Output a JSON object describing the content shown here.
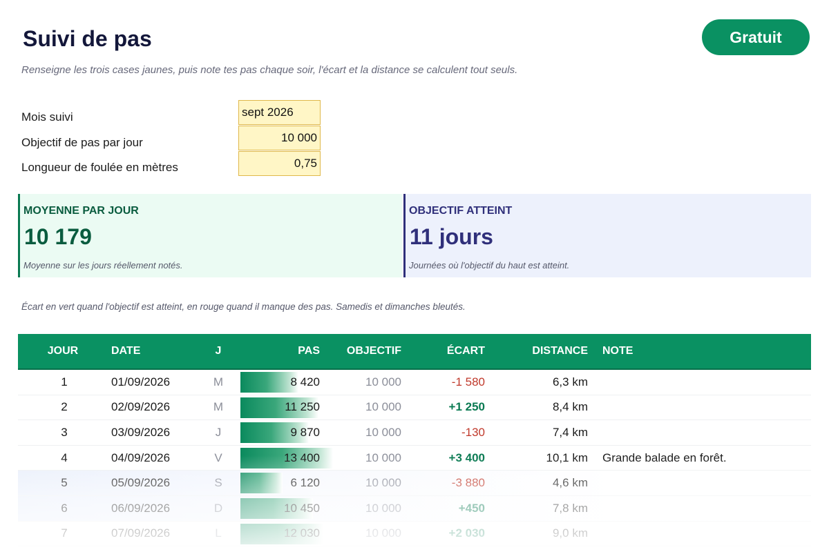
{
  "header": {
    "title": "Suivi de pas",
    "badge": "Gratuit",
    "subtitle": "Renseigne les trois cases jaunes, puis note tes pas chaque soir, l'écart et la distance se calculent tout seuls."
  },
  "params": [
    {
      "label": "Mois suivi",
      "value": "sept 2026"
    },
    {
      "label": "Objectif de pas par jour",
      "value": "10 000"
    },
    {
      "label": "Longueur de foulée en mètres",
      "value": "0,75"
    }
  ],
  "kpis": {
    "average": {
      "title": "MOYENNE PAR JOUR",
      "value": "10 179",
      "note": "Moyenne sur les jours réellement notés."
    },
    "goal": {
      "title": "OBJECTIF ATTEINT",
      "value": "11 jours",
      "note": "Journées où l'objectif du haut est atteint."
    }
  },
  "legend_note": "Écart en vert quand l'objectif est atteint, en rouge quand il manque des pas. Samedis et dimanches bleutés.",
  "table": {
    "headers": {
      "jour": "JOUR",
      "date": "DATE",
      "j": "J",
      "pas": "PAS",
      "objectif": "OBJECTIF",
      "ecart": "ÉCART",
      "distance": "DISTANCE",
      "note": "NOTE"
    },
    "bar_max_steps": 20000,
    "rows": [
      {
        "jour": "1",
        "date": "01/09/2026",
        "j": "M",
        "pas": "8 420",
        "steps": 8420,
        "objectif": "10 000",
        "ecart": "-1 580",
        "positive": false,
        "distance": "6,3 km",
        "note": "",
        "weekend": false
      },
      {
        "jour": "2",
        "date": "02/09/2026",
        "j": "M",
        "pas": "11 250",
        "steps": 11250,
        "objectif": "10 000",
        "ecart": "+1 250",
        "positive": true,
        "distance": "8,4 km",
        "note": "",
        "weekend": false
      },
      {
        "jour": "3",
        "date": "03/09/2026",
        "j": "J",
        "pas": "9 870",
        "steps": 9870,
        "objectif": "10 000",
        "ecart": "-130",
        "positive": false,
        "distance": "7,4 km",
        "note": "",
        "weekend": false
      },
      {
        "jour": "4",
        "date": "04/09/2026",
        "j": "V",
        "pas": "13 400",
        "steps": 13400,
        "objectif": "10 000",
        "ecart": "+3 400",
        "positive": true,
        "distance": "10,1 km",
        "note": "Grande balade en forêt.",
        "weekend": false
      },
      {
        "jour": "5",
        "date": "05/09/2026",
        "j": "S",
        "pas": "6 120",
        "steps": 6120,
        "objectif": "10 000",
        "ecart": "-3 880",
        "positive": false,
        "distance": "4,6 km",
        "note": "",
        "weekend": true
      },
      {
        "jour": "6",
        "date": "06/09/2026",
        "j": "D",
        "pas": "10 450",
        "steps": 10450,
        "objectif": "10 000",
        "ecart": "+450",
        "positive": true,
        "distance": "7,8 km",
        "note": "",
        "weekend": true
      },
      {
        "jour": "7",
        "date": "07/09/2026",
        "j": "L",
        "pas": "12 030",
        "steps": 12030,
        "objectif": "10 000",
        "ecart": "+2 030",
        "positive": true,
        "distance": "9,0 km",
        "note": "",
        "weekend": false
      }
    ]
  },
  "colors": {
    "accent": "#0a9162",
    "positive": "#0a7a52",
    "negative": "#c0392b",
    "param_fill": "#fff6c6"
  }
}
